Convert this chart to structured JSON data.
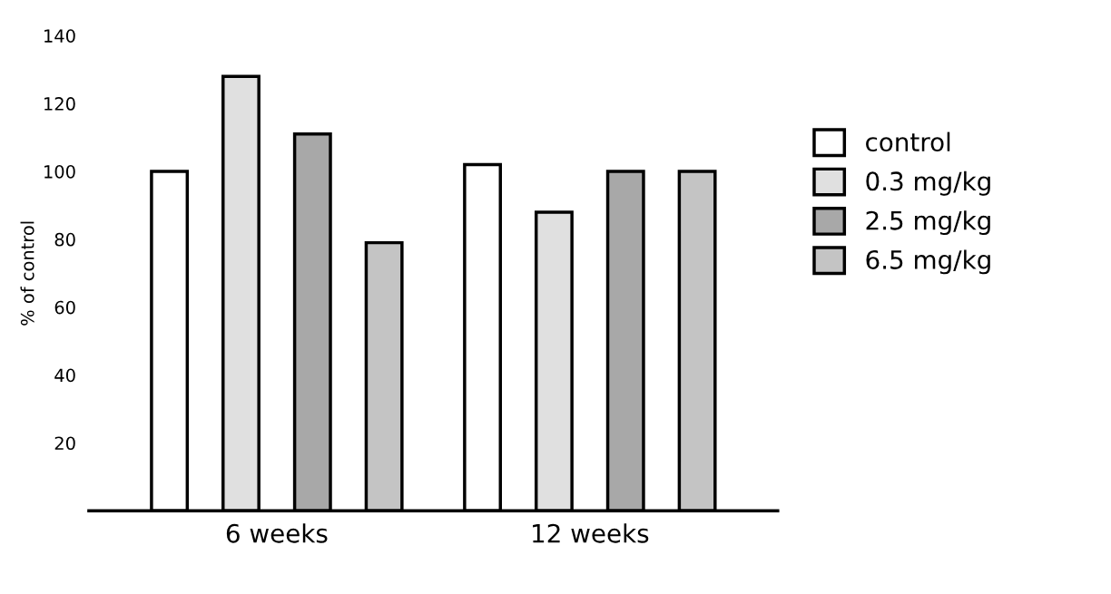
{
  "chart_data": {
    "type": "bar",
    "ylabel": "% of control",
    "categories": [
      "6 weeks",
      "12 weeks"
    ],
    "series": [
      {
        "name": "control",
        "color": "#ffffff",
        "values": [
          100,
          102
        ]
      },
      {
        "name": "0.3 mg/kg",
        "color": "#e0e0e0",
        "values": [
          128,
          88
        ]
      },
      {
        "name": "2.5 mg/kg",
        "color": "#a8a8a8",
        "values": [
          111,
          100
        ]
      },
      {
        "name": "6.5 mg/kg",
        "color": "#c4c4c4",
        "values": [
          79,
          100
        ]
      }
    ],
    "ylim": [
      0,
      140
    ],
    "yticks": [
      20,
      40,
      60,
      80,
      100,
      120,
      140
    ],
    "grid": false,
    "legend": "right"
  }
}
